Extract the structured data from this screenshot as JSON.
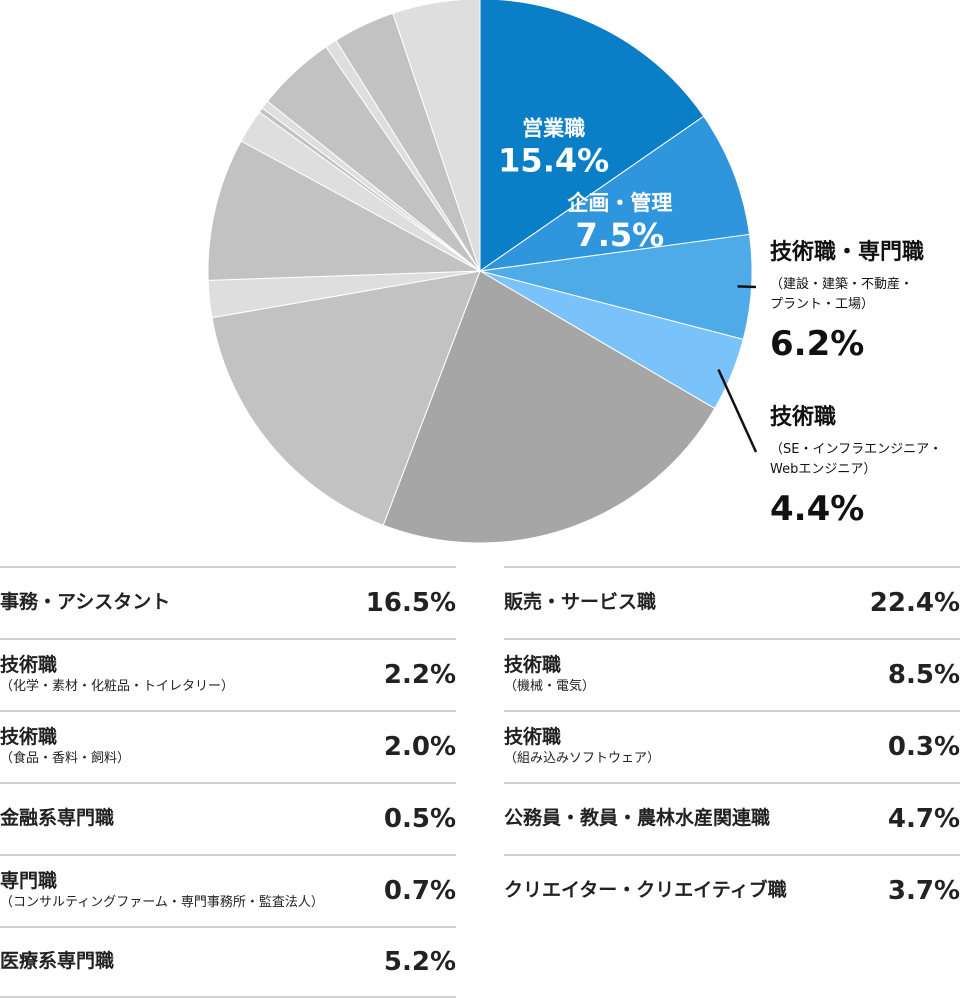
{
  "chart_data": {
    "type": "pie",
    "slices": [
      {
        "label": "営業職",
        "value": 15.4,
        "display": "15.4%",
        "color": "#0a7ec6",
        "highlight": true
      },
      {
        "label": "企画・管理",
        "value": 7.5,
        "display": "7.5%",
        "color": "#2f95dc",
        "highlight": true
      },
      {
        "label": "技術職・専門職",
        "sub": "（建設・建築・不動産・プラント・工場）",
        "sub_lines": [
          "（建設・建築・不動産・",
          "プラント・工場）"
        ],
        "value": 6.2,
        "display": "6.2%",
        "color": "#4eabe8",
        "highlight": true
      },
      {
        "label": "技術職",
        "sub": "（SE・インフラエンジニア・Webエンジニア）",
        "sub_lines": [
          "（SE・インフラエンジニア・",
          "Webエンジニア）"
        ],
        "value": 4.4,
        "display": "4.4%",
        "color": "#79c2fa",
        "highlight": true
      },
      {
        "label": "販売・サービス職",
        "value": 22.4,
        "display": "22.4%",
        "color": "#a6a6a6"
      },
      {
        "label": "事務・アシスタント",
        "value": 16.5,
        "display": "16.5%",
        "color": "#c2c2c2"
      },
      {
        "label": "技術職",
        "sub": "（化学・素材・化粧品・トイレタリー）",
        "value": 2.2,
        "display": "2.2%",
        "color": "#dedede"
      },
      {
        "label": "技術職",
        "sub": "（機械・電気）",
        "value": 8.5,
        "display": "8.5%",
        "color": "#c2c2c2"
      },
      {
        "label": "技術職",
        "sub": "（食品・香料・飼料）",
        "value": 2.0,
        "display": "2.0%",
        "color": "#dedede"
      },
      {
        "label": "技術職",
        "sub": "（組み込みソフトウェア）",
        "value": 0.3,
        "display": "0.3%",
        "color": "#c2c2c2"
      },
      {
        "label": "金融系専門職",
        "value": 0.5,
        "display": "0.5%",
        "color": "#dedede"
      },
      {
        "label": "公務員・教員・農林水産関連職",
        "value": 4.7,
        "display": "4.7%",
        "color": "#c2c2c2"
      },
      {
        "label": "専門職",
        "sub": "（コンサルティングファーム・専門事務所・監査法人）",
        "value": 0.7,
        "display": "0.7%",
        "color": "#dedede"
      },
      {
        "label": "クリエイター・クリエイティブ職",
        "value": 3.7,
        "display": "3.7%",
        "color": "#c2c2c2"
      },
      {
        "label": "医療系専門職",
        "value": 5.2,
        "display": "5.2%",
        "color": "#dedede"
      }
    ]
  },
  "table": {
    "left": [
      {
        "name": "事務・アシスタント",
        "sub": "",
        "value": "16.5%"
      },
      {
        "name": "技術職",
        "sub": "（化学・素材・化粧品・トイレタリー）",
        "value": "2.2%"
      },
      {
        "name": "技術職",
        "sub": "（食品・香料・飼料）",
        "value": "2.0%"
      },
      {
        "name": "金融系専門職",
        "sub": "",
        "value": "0.5%"
      },
      {
        "name": "専門職",
        "sub": "（コンサルティングファーム・専門事務所・監査法人）",
        "value": "0.7%"
      },
      {
        "name": "医療系専門職",
        "sub": "",
        "value": "5.2%"
      }
    ],
    "right": [
      {
        "name": "販売・サービス職",
        "sub": "",
        "value": "22.4%"
      },
      {
        "name": "技術職",
        "sub": "（機械・電気）",
        "value": "8.5%"
      },
      {
        "name": "技術職",
        "sub": "（組み込みソフトウェア）",
        "value": "0.3%"
      },
      {
        "name": "公務員・教員・農林水産関連職",
        "sub": "",
        "value": "4.7%"
      },
      {
        "name": "クリエイター・クリエイティブ職",
        "sub": "",
        "value": "3.7%"
      }
    ]
  }
}
